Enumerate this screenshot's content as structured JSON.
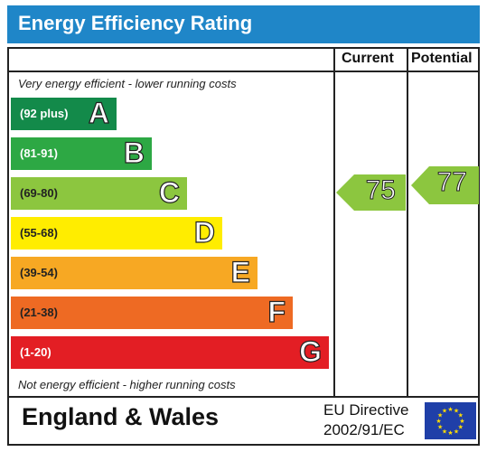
{
  "title": "Energy Efficiency Rating",
  "columns": {
    "current": "Current",
    "potential": "Potential"
  },
  "notes": {
    "top": "Very energy efficient - lower running costs",
    "bottom": "Not energy efficient - higher running costs"
  },
  "bands": [
    {
      "range": "(92 plus)",
      "letter": "A",
      "color": "#138a4a",
      "text_color": "#ffffff"
    },
    {
      "range": "(81-91)",
      "letter": "B",
      "color": "#2da844",
      "text_color": "#ffffff"
    },
    {
      "range": "(69-80)",
      "letter": "C",
      "color": "#8cc63f",
      "text_color": "#222222"
    },
    {
      "range": "(55-68)",
      "letter": "D",
      "color": "#ffed00",
      "text_color": "#222222"
    },
    {
      "range": "(39-54)",
      "letter": "E",
      "color": "#f7a823",
      "text_color": "#222222"
    },
    {
      "range": "(21-38)",
      "letter": "F",
      "color": "#ee6a23",
      "text_color": "#222222"
    },
    {
      "range": "(1-20)",
      "letter": "G",
      "color": "#e31e24",
      "text_color": "#ffffff"
    }
  ],
  "current": {
    "value": "75",
    "band": "C",
    "color": "#8cc63f"
  },
  "potential": {
    "value": "77",
    "band": "C",
    "color": "#8cc63f"
  },
  "footer": {
    "region": "England & Wales",
    "directive_line1": "EU Directive",
    "directive_line2": "2002/91/EC",
    "flag_icon": "eu-flag-icon"
  }
}
